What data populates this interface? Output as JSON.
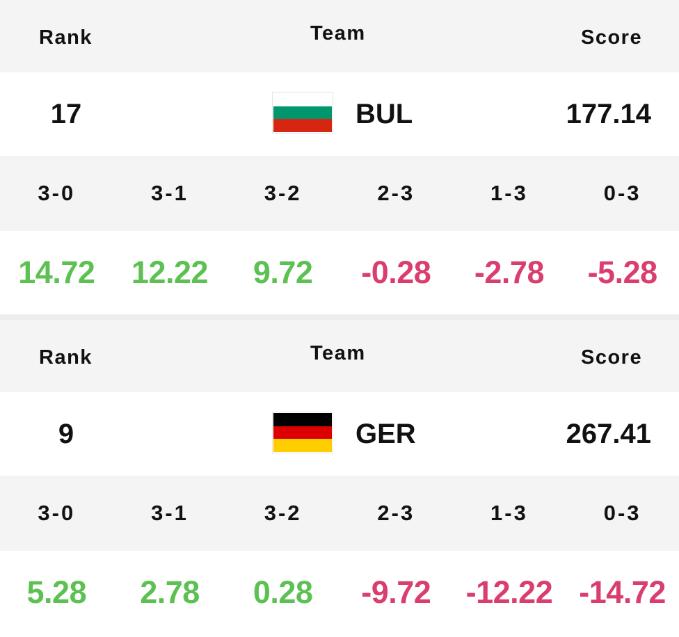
{
  "headers": {
    "rank": "Rank",
    "team": "Team",
    "score": "Score"
  },
  "colors": {
    "positive": "#5cc152",
    "negative": "#d93e6e"
  },
  "cards": [
    {
      "rank": "17",
      "team_code": "BUL",
      "flag_icon": "bulgaria-flag-icon",
      "flag_stripes": [
        "#ffffff",
        "#00966e",
        "#d62612"
      ],
      "score": "177.14",
      "results": [
        {
          "label": "3-0",
          "value": "14.72",
          "sign": "pos"
        },
        {
          "label": "3-1",
          "value": "12.22",
          "sign": "pos"
        },
        {
          "label": "3-2",
          "value": "9.72",
          "sign": "pos"
        },
        {
          "label": "2-3",
          "value": "-0.28",
          "sign": "neg"
        },
        {
          "label": "1-3",
          "value": "-2.78",
          "sign": "neg"
        },
        {
          "label": "0-3",
          "value": "-5.28",
          "sign": "neg"
        }
      ]
    },
    {
      "rank": "9",
      "team_code": "GER",
      "flag_icon": "germany-flag-icon",
      "flag_stripes": [
        "#000000",
        "#dd0000",
        "#ffce00"
      ],
      "score": "267.41",
      "results": [
        {
          "label": "3-0",
          "value": "5.28",
          "sign": "pos"
        },
        {
          "label": "3-1",
          "value": "2.78",
          "sign": "pos"
        },
        {
          "label": "3-2",
          "value": "0.28",
          "sign": "pos"
        },
        {
          "label": "2-3",
          "value": "-9.72",
          "sign": "neg"
        },
        {
          "label": "1-3",
          "value": "-12.22",
          "sign": "neg"
        },
        {
          "label": "0-3",
          "value": "-14.72",
          "sign": "neg"
        }
      ]
    }
  ]
}
